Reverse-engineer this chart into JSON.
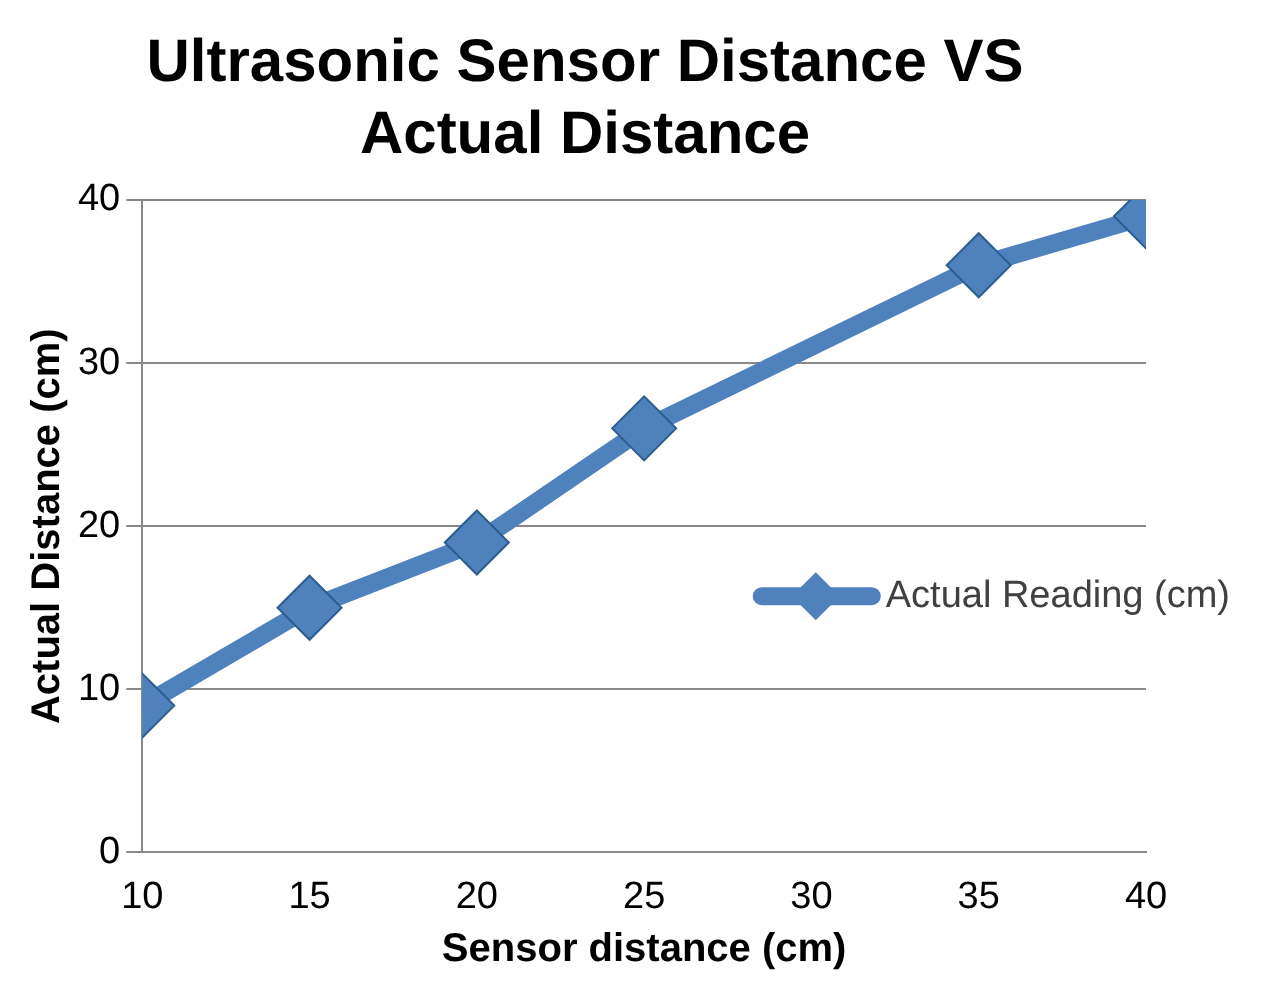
{
  "chart_data": {
    "type": "line",
    "title": "Ultrasonic Sensor Distance VS Actual Distance",
    "xlabel": "Sensor distance (cm)",
    "ylabel": "Actual Distance (cm)",
    "x": [
      10,
      15,
      20,
      25,
      35,
      40
    ],
    "series": [
      {
        "name": "Actual Reading (cm)",
        "color": "#4f81bd",
        "values": [
          9,
          15,
          19,
          26,
          36,
          39
        ]
      }
    ],
    "xlim": [
      10,
      40
    ],
    "xticks": [
      10,
      15,
      20,
      25,
      30,
      35,
      40
    ],
    "ylim": [
      0,
      40
    ],
    "yticks": [
      0,
      10,
      20,
      30,
      40
    ],
    "grid": "y",
    "legend": "right",
    "marker": "diamond",
    "line_style": "solid"
  }
}
